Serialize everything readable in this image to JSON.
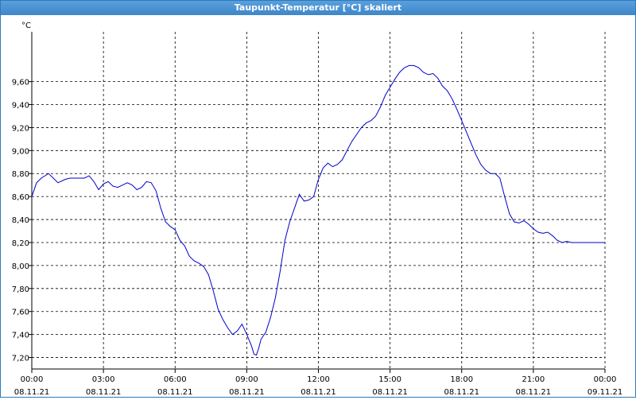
{
  "window": {
    "title": "Taupunkt-Temperatur [°C] skaliert"
  },
  "chart_data": {
    "type": "line",
    "title": "Taupunkt-Temperatur [°C] skaliert",
    "ylabel": "°C",
    "xlabel": "",
    "ylim": [
      7.1,
      9.95
    ],
    "xlim": [
      0,
      24
    ],
    "grid": true,
    "line_color": "#0000cc",
    "yticks": [
      "9,60",
      "9,40",
      "9,20",
      "9,00",
      "8,80",
      "8,60",
      "8,40",
      "8,20",
      "8,00",
      "7,80",
      "7,60",
      "7,40",
      "7,20"
    ],
    "ytick_values": [
      9.6,
      9.4,
      9.2,
      9.0,
      8.8,
      8.6,
      8.4,
      8.2,
      8.0,
      7.8,
      7.6,
      7.4,
      7.2
    ],
    "xticks": [
      {
        "time": "00:00",
        "date": "08.11.21",
        "hour": 0
      },
      {
        "time": "03:00",
        "date": "08.11.21",
        "hour": 3
      },
      {
        "time": "06:00",
        "date": "08.11.21",
        "hour": 6
      },
      {
        "time": "09:00",
        "date": "08.11.21",
        "hour": 9
      },
      {
        "time": "12:00",
        "date": "08.11.21",
        "hour": 12
      },
      {
        "time": "15:00",
        "date": "08.11.21",
        "hour": 15
      },
      {
        "time": "18:00",
        "date": "08.11.21",
        "hour": 18
      },
      {
        "time": "21:00",
        "date": "08.11.21",
        "hour": 21
      },
      {
        "time": "00:00",
        "date": "09.11.21",
        "hour": 24
      }
    ],
    "series": [
      {
        "x": [
          0,
          0.2,
          0.4,
          0.7,
          0.9,
          1.1,
          1.4,
          1.6,
          1.9,
          2.2,
          2.4,
          2.6,
          2.8,
          3.0,
          3.2,
          3.4,
          3.6,
          3.8,
          4.0,
          4.2,
          4.4,
          4.6,
          4.8,
          5.0,
          5.2,
          5.4,
          5.6,
          5.8,
          6.0,
          6.2,
          6.4,
          6.6,
          6.8,
          7.0,
          7.2,
          7.4,
          7.6,
          7.8,
          8.0,
          8.2,
          8.4,
          8.6,
          8.8,
          9.0,
          9.2,
          9.3,
          9.4,
          9.5,
          9.6,
          9.8,
          10.0,
          10.2,
          10.4,
          10.6,
          10.8,
          11.0,
          11.2,
          11.4,
          11.6,
          11.8,
          12.0,
          12.2,
          12.4,
          12.6,
          12.8,
          13.0,
          13.2,
          13.4,
          13.6,
          13.8,
          14.0,
          14.2,
          14.4,
          14.6,
          14.8,
          15.0,
          15.2,
          15.4,
          15.6,
          15.8,
          16.0,
          16.2,
          16.4,
          16.6,
          16.8,
          17.0,
          17.2,
          17.4,
          17.6,
          17.8,
          18.0,
          18.2,
          18.4,
          18.6,
          18.8,
          19.0,
          19.2,
          19.4,
          19.6,
          19.8,
          20.0,
          20.2,
          20.4,
          20.6,
          20.8,
          21.0,
          21.2,
          21.4,
          21.6,
          21.8,
          22.0,
          22.2,
          22.4,
          22.6,
          22.8,
          23.0,
          23.2,
          23.4,
          23.6,
          23.8,
          24.0
        ],
        "values": [
          8.6,
          8.72,
          8.76,
          8.8,
          8.76,
          8.72,
          8.75,
          8.76,
          8.76,
          8.76,
          8.78,
          8.73,
          8.66,
          8.71,
          8.73,
          8.69,
          8.68,
          8.7,
          8.72,
          8.7,
          8.66,
          8.68,
          8.73,
          8.72,
          8.65,
          8.5,
          8.38,
          8.34,
          8.31,
          8.22,
          8.17,
          8.08,
          8.04,
          8.02,
          7.99,
          7.92,
          7.78,
          7.62,
          7.53,
          7.46,
          7.4,
          7.43,
          7.49,
          7.4,
          7.3,
          7.23,
          7.22,
          7.28,
          7.36,
          7.42,
          7.55,
          7.72,
          7.95,
          8.22,
          8.38,
          8.5,
          8.62,
          8.56,
          8.57,
          8.6,
          8.75,
          8.85,
          8.89,
          8.86,
          8.88,
          8.92,
          9.0,
          9.08,
          9.14,
          9.2,
          9.24,
          9.26,
          9.3,
          9.38,
          9.48,
          9.55,
          9.62,
          9.68,
          9.72,
          9.74,
          9.74,
          9.72,
          9.68,
          9.66,
          9.67,
          9.63,
          9.56,
          9.52,
          9.45,
          9.36,
          9.26,
          9.16,
          9.06,
          8.96,
          8.88,
          8.83,
          8.8,
          8.8,
          8.76,
          8.6,
          8.45,
          8.38,
          8.37,
          8.39,
          8.36,
          8.32,
          8.29,
          8.28,
          8.29,
          8.26,
          8.22,
          8.2,
          8.21,
          8.2,
          8.2,
          8.2,
          8.2,
          8.2,
          8.2,
          8.2,
          8.2
        ]
      }
    ]
  }
}
